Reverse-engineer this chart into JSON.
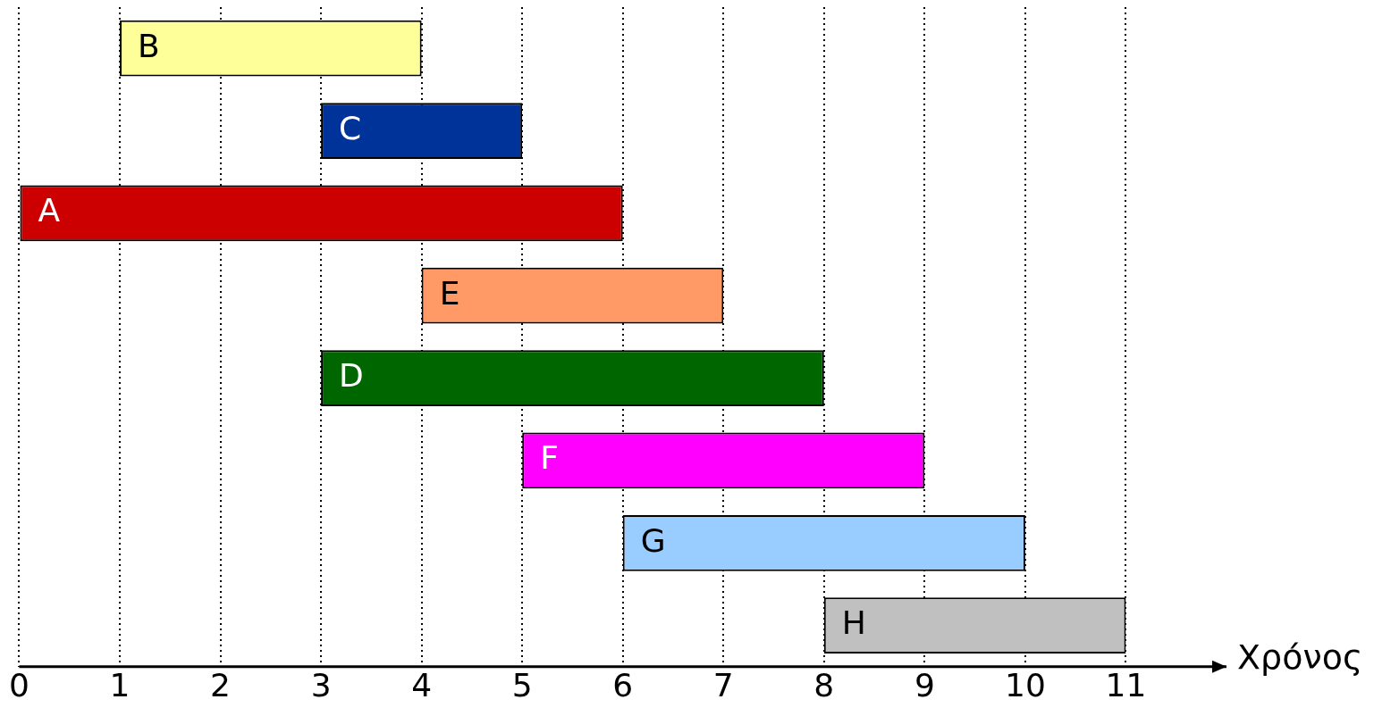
{
  "chart_data": {
    "type": "bar",
    "orientation": "horizontal",
    "xlabel": "Χρόνος",
    "categories": [
      "B",
      "C",
      "A",
      "E",
      "D",
      "F",
      "G",
      "H"
    ],
    "base": [
      1,
      3,
      0,
      4,
      3,
      5,
      6,
      8
    ],
    "values": [
      3,
      2,
      6,
      3,
      5,
      4,
      4,
      3
    ],
    "colors": [
      "#ffff99",
      "#003399",
      "#cc0000",
      "#ff9966",
      "#006600",
      "#ff00ff",
      "#99ccff",
      "#c0c0c0"
    ],
    "xlim": [
      0,
      12
    ],
    "xticks": [
      0,
      1,
      2,
      3,
      4,
      5,
      6,
      7,
      8,
      9,
      10,
      11
    ],
    "grid": "x",
    "legend": false,
    "tick_labels": "x"
  }
}
